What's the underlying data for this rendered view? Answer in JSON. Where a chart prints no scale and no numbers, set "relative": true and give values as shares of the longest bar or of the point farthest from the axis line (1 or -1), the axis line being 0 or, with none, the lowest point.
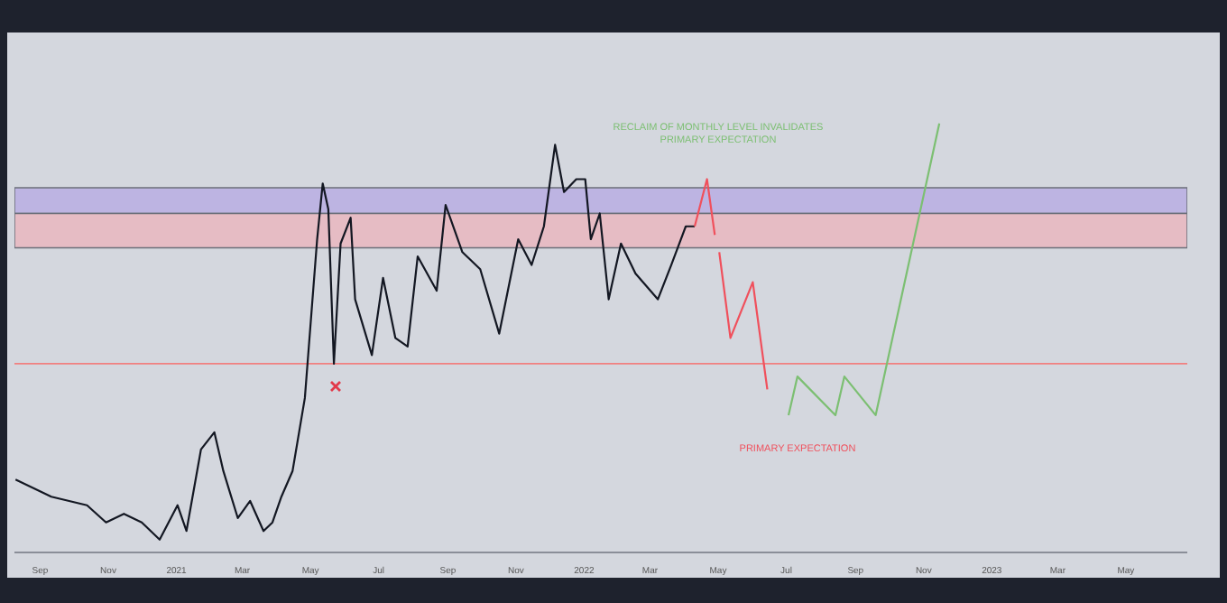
{
  "chart_data": {
    "type": "line",
    "relative": true,
    "grid": false,
    "legend": false,
    "marker": "none",
    "line_style": "solid",
    "xlim": [
      "2020-08-09",
      "2023-06-25"
    ],
    "xticks": [
      {
        "value": "2020-09-01",
        "label": "Sep"
      },
      {
        "value": "2020-11-01",
        "label": "Nov"
      },
      {
        "value": "2021-01-01",
        "label": "2021"
      },
      {
        "value": "2021-03-01",
        "label": "Mar"
      },
      {
        "value": "2021-05-01",
        "label": "May"
      },
      {
        "value": "2021-07-01",
        "label": "Jul"
      },
      {
        "value": "2021-09-01",
        "label": "Sep"
      },
      {
        "value": "2021-11-01",
        "label": "Nov"
      },
      {
        "value": "2022-01-01",
        "label": "2022"
      },
      {
        "value": "2022-03-01",
        "label": "Mar"
      },
      {
        "value": "2022-05-01",
        "label": "May"
      },
      {
        "value": "2022-07-01",
        "label": "Jul"
      },
      {
        "value": "2022-09-01",
        "label": "Sep"
      },
      {
        "value": "2022-11-01",
        "label": "Nov"
      },
      {
        "value": "2023-01-01",
        "label": "2023"
      },
      {
        "value": "2023-03-01",
        "label": "Mar"
      },
      {
        "value": "2023-05-01",
        "label": "May"
      }
    ],
    "series": [
      {
        "color": "#131722",
        "x": [
          "2020-08-10",
          "2020-09-11",
          "2020-10-13",
          "2020-10-30",
          "2020-11-15",
          "2020-12-01",
          "2020-12-17",
          "2021-01-02",
          "2021-01-10",
          "2021-01-23",
          "2021-02-04",
          "2021-02-12",
          "2021-02-25",
          "2021-03-08",
          "2021-03-20",
          "2021-03-28",
          "2021-04-05",
          "2021-04-15",
          "2021-04-26",
          "2021-05-07",
          "2021-05-12",
          "2021-05-17",
          "2021-05-22",
          "2021-05-28",
          "2021-06-06",
          "2021-06-10",
          "2021-06-25",
          "2021-07-05",
          "2021-07-16",
          "2021-07-27",
          "2021-08-05",
          "2021-08-22",
          "2021-08-30",
          "2021-09-14",
          "2021-09-30",
          "2021-10-17",
          "2021-11-03",
          "2021-11-15",
          "2021-11-26",
          "2021-12-06",
          "2021-12-14",
          "2021-12-25",
          "2022-01-02",
          "2022-01-07",
          "2022-01-15",
          "2022-01-23",
          "2022-02-03",
          "2022-02-16",
          "2022-03-08",
          "2022-03-20",
          "2022-04-02",
          "2022-04-10"
        ],
        "values": [
          0.17,
          0.13,
          0.11,
          0.07,
          0.09,
          0.07,
          0.03,
          0.11,
          0.05,
          0.24,
          0.28,
          0.19,
          0.08,
          0.12,
          0.05,
          0.07,
          0.13,
          0.19,
          0.36,
          0.73,
          0.86,
          0.8,
          0.44,
          0.72,
          0.78,
          0.59,
          0.46,
          0.64,
          0.5,
          0.48,
          0.69,
          0.61,
          0.81,
          0.7,
          0.66,
          0.51,
          0.73,
          0.67,
          0.76,
          0.95,
          0.84,
          0.87,
          0.87,
          0.73,
          0.79,
          0.59,
          0.72,
          0.65,
          0.59,
          0.67,
          0.76,
          0.76
        ]
      },
      {
        "color": "#f0505c",
        "x": [
          "2022-04-10",
          "2022-04-21",
          "2022-04-28",
          "2022-04-30",
          "2022-05-02",
          "2022-05-12",
          "2022-06-01",
          "2022-06-14"
        ],
        "values": [
          0.76,
          0.87,
          0.74,
          null,
          0.7,
          0.5,
          0.63,
          0.38
        ]
      },
      {
        "color": "#7cbf72",
        "x": [
          "2022-07-03",
          "2022-07-11",
          "2022-08-14",
          "2022-08-22",
          "2022-09-19",
          "2022-11-15"
        ],
        "values": [
          0.32,
          0.41,
          0.32,
          0.41,
          0.32,
          1.0
        ]
      }
    ],
    "bands": [
      {
        "axis": "y",
        "from": 0.79,
        "to": 0.85,
        "color": "#bdb4e2"
      },
      {
        "axis": "y",
        "from": 0.71,
        "to": 0.79,
        "color": "#e6bcc4"
      }
    ],
    "ref_lines": [
      {
        "axis": "y",
        "value": 0.44,
        "color": "#f08080"
      }
    ],
    "annotations": [
      "RECLAIM OF MONTHLY LEVEL INVALIDATES\nPRIMARY EXPECTATION",
      "PRIMARY EXPECTATION"
    ]
  }
}
